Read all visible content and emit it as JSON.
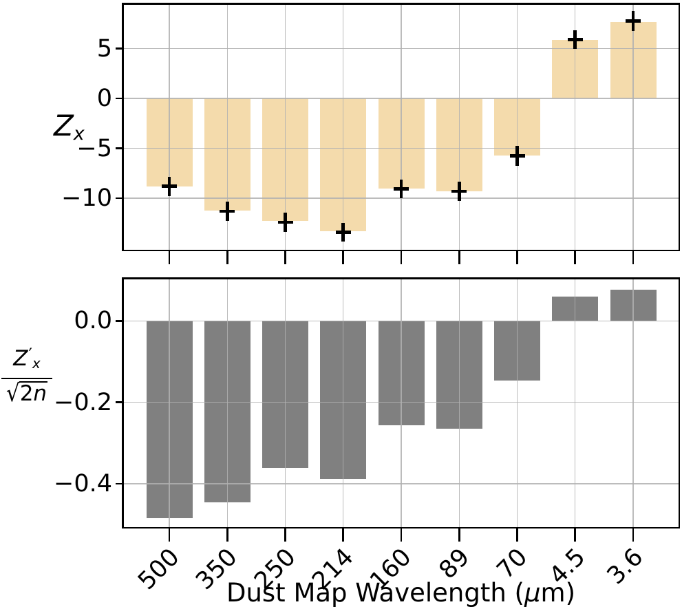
{
  "chart_data": {
    "type": "bar",
    "title": "",
    "categories": [
      "500",
      "350",
      "250",
      "214",
      "160",
      "89",
      "70",
      "4.5",
      "3.6"
    ],
    "xlabel": {
      "pre": "Dust Map Wavelength (",
      "mu": "μ",
      "post": "m)"
    },
    "grid": true,
    "legend": "none",
    "colors": {
      "top_bar": "#F4DBAC",
      "bottom_bar": "#808080",
      "grid": "#B0B0B0",
      "marker": "#000000",
      "spine": "#000000"
    },
    "panels": [
      {
        "name": "zx",
        "ylabel": {
          "base": "Z",
          "sub": "x"
        },
        "ylim": [
          -15.3,
          9.6
        ],
        "yticks": [
          {
            "v": 5,
            "label": "5"
          },
          {
            "v": 0,
            "label": "0"
          },
          {
            "v": -5,
            "label": "−5"
          },
          {
            "v": -10,
            "label": "−10"
          }
        ],
        "bars": [
          -8.8,
          -11.2,
          -12.3,
          -13.3,
          -9.0,
          -9.3,
          -5.7,
          5.9,
          7.7
        ],
        "markers": [
          -8.8,
          -11.3,
          -12.4,
          -13.4,
          -9.05,
          -9.3,
          -5.75,
          5.9,
          7.75
        ],
        "errors": [
          0.95,
          0.95,
          0.95,
          0.95,
          0.95,
          0.95,
          1.0,
          0.95,
          1.0
        ],
        "bar_color_key": "top_bar",
        "has_error_markers": true
      },
      {
        "name": "zx-normalized",
        "ylabel": {
          "num_base": "Z",
          "num_prime": "′",
          "num_sub": "x",
          "radical": "√",
          "den_num": "2",
          "den_var": "n"
        },
        "ylim": [
          -0.51,
          0.107
        ],
        "yticks": [
          {
            "v": 0,
            "label": "0.0"
          },
          {
            "v": -0.2,
            "label": "−0.2"
          },
          {
            "v": -0.4,
            "label": "−0.4"
          }
        ],
        "bars": [
          -0.485,
          -0.445,
          -0.362,
          -0.389,
          -0.257,
          -0.265,
          -0.147,
          0.059,
          0.076
        ],
        "markers": [],
        "errors": [],
        "bar_color_key": "bottom_bar",
        "has_error_markers": false
      }
    ]
  }
}
